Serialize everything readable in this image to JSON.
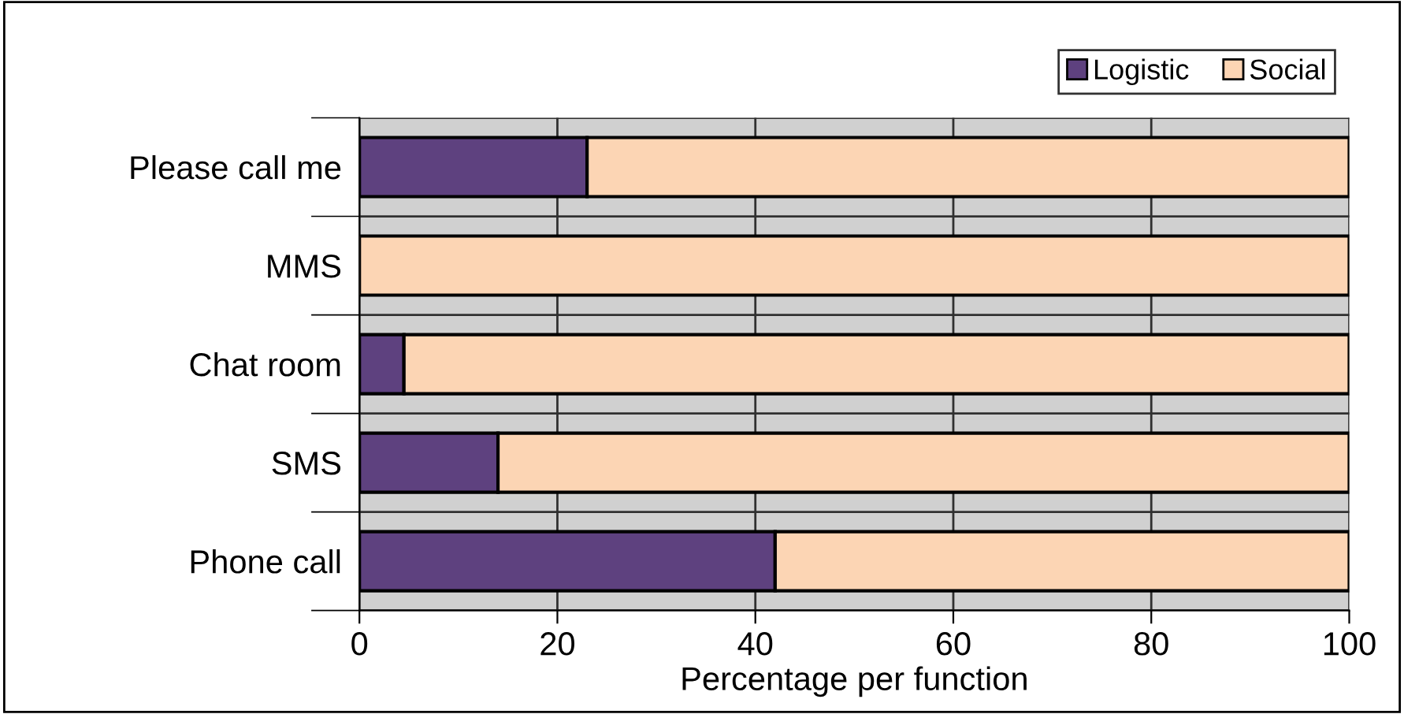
{
  "chart_data": {
    "type": "bar",
    "orientation": "horizontal",
    "stacked": true,
    "categories": [
      "Please call me",
      "MMS",
      "Chat room",
      "SMS",
      "Phone call"
    ],
    "series": [
      {
        "name": "Logistic",
        "color": "#5e417f",
        "values": [
          23,
          0,
          4.5,
          14,
          42
        ]
      },
      {
        "name": "Social",
        "color": "#fcd5b4",
        "values": [
          77,
          100,
          95.5,
          86,
          58
        ]
      }
    ],
    "xlabel": "Percentage per function",
    "xlim": [
      0,
      100
    ],
    "xticks": [
      0,
      20,
      40,
      60,
      80,
      100
    ],
    "grid": true,
    "legend": "top right"
  }
}
